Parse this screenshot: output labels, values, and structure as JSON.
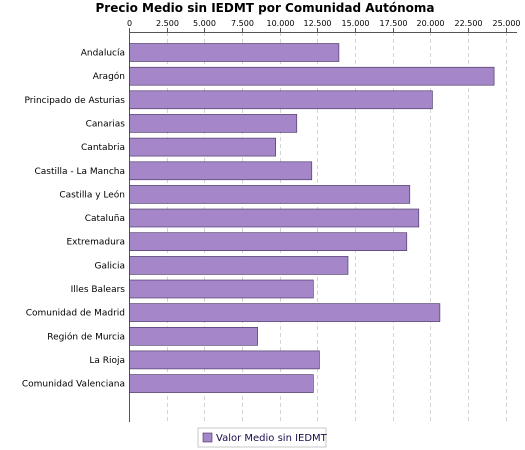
{
  "chart_data": {
    "type": "bar",
    "orientation": "horizontal",
    "title": "Precio Medio sin IEDMT por Comunidad Autónoma",
    "xlabel": "",
    "ylabel": "",
    "axis_position": "top",
    "xlim": [
      0,
      25750
    ],
    "x_ticks": [
      0,
      2500,
      5000,
      7500,
      10000,
      12500,
      15000,
      17500,
      20000,
      22500,
      25000
    ],
    "x_tick_labels": [
      "0",
      "2.500",
      "5.000",
      "7.500",
      "10.000",
      "12.500",
      "15.000",
      "17.500",
      "20.000",
      "22.500",
      "25.000"
    ],
    "grid": true,
    "legend_position": "bottom-center",
    "bar_color": "#a586c8",
    "bar_border_color": "#3f2d5c",
    "categories": [
      "Andalucía",
      "Aragón",
      "Principado de Asturias",
      "Canarias",
      "Cantabria",
      "Castilla - La Mancha",
      "Castilla y León",
      "Cataluña",
      "Extremadura",
      "Galicia",
      "Illes Balears",
      "Comunidad de Madrid",
      "Región de Murcia",
      "La Rioja",
      "Comunidad Valenciana"
    ],
    "series": [
      {
        "name": "Valor Medio sin IEDMT",
        "values": [
          13900,
          24200,
          20100,
          11100,
          9700,
          12100,
          18600,
          19200,
          18400,
          14500,
          12200,
          20600,
          8500,
          12600,
          12200
        ]
      }
    ]
  }
}
